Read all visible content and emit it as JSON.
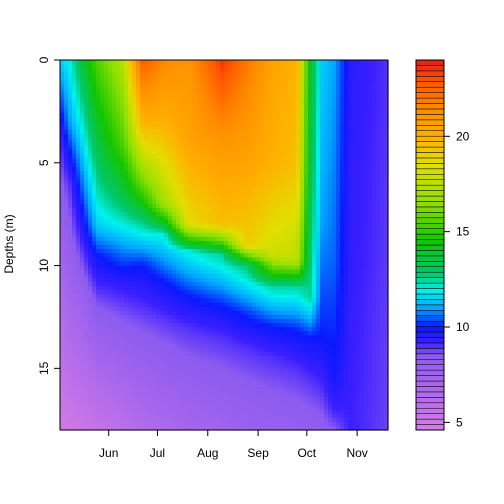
{
  "chart_data": {
    "type": "heatmap",
    "title": "",
    "xlabel": "",
    "ylabel": "Depths (m)",
    "x_tick_labels": [
      "Jun",
      "Jul",
      "Aug",
      "Sep",
      "Oct",
      "Nov"
    ],
    "x_tick_dates": [
      "2015-06-01",
      "2015-07-01",
      "2015-08-01",
      "2015-09-01",
      "2015-10-01",
      "2015-11-01"
    ],
    "xlim": [
      "2015-05-02",
      "2015-11-20"
    ],
    "y_ticks": [
      0,
      5,
      10,
      15
    ],
    "ylim": [
      18,
      0
    ],
    "y_reversed": true,
    "value_range": [
      4.6,
      24
    ],
    "colorbar": {
      "ticks": [
        5,
        10,
        15,
        20
      ],
      "colors": [
        "#d67be6",
        "#8c5bf0",
        "#3b1fff",
        "#0a18ff",
        "#00a7ff",
        "#00f2ee",
        "#00c86e",
        "#13c400",
        "#8ee000",
        "#e2df00",
        "#ffb000",
        "#ff8a00",
        "#ff5a00",
        "#e51d17"
      ],
      "color_values": [
        4.6,
        8.5,
        9.2,
        10.0,
        11.0,
        11.9,
        12.8,
        14.5,
        16.5,
        18.5,
        20.0,
        21.5,
        22.8,
        24.0
      ]
    },
    "profiles": [
      {
        "date": "2015-05-02",
        "depths": [
          0,
          4,
          8,
          12,
          18
        ],
        "values": [
          11.5,
          9.0,
          7.8,
          6.5,
          4.8
        ]
      },
      {
        "date": "2015-05-08",
        "depths": [
          0,
          3,
          6,
          10,
          18
        ],
        "values": [
          12.0,
          11.0,
          9.0,
          7.8,
          5.0
        ]
      },
      {
        "date": "2015-05-15",
        "depths": [
          0,
          3,
          6,
          9,
          12,
          18
        ],
        "values": [
          13.5,
          12.0,
          10.5,
          9.0,
          7.5,
          5.2
        ]
      },
      {
        "date": "2015-05-25",
        "depths": [
          0,
          4,
          8,
          9.5,
          12,
          18
        ],
        "values": [
          15.5,
          13.5,
          11.5,
          10.0,
          8.5,
          5.5
        ]
      },
      {
        "date": "2015-06-10",
        "depths": [
          0,
          4,
          7,
          9,
          11,
          18
        ],
        "values": [
          17.5,
          15.5,
          13.0,
          11.0,
          9.3,
          6.0
        ]
      },
      {
        "date": "2015-06-22",
        "depths": [
          0,
          3,
          6,
          8,
          10,
          12,
          18
        ],
        "values": [
          22.8,
          20.0,
          16.0,
          12.5,
          10.0,
          9.0,
          6.5
        ]
      },
      {
        "date": "2015-07-05",
        "depths": [
          0,
          3,
          7,
          8.5,
          11,
          12.5,
          18
        ],
        "values": [
          21.5,
          20.0,
          17.0,
          12.0,
          9.8,
          9.0,
          6.8
        ]
      },
      {
        "date": "2015-07-20",
        "depths": [
          0,
          4,
          8,
          9.3,
          11.5,
          13,
          18
        ],
        "values": [
          21.0,
          20.5,
          18.5,
          12.0,
          10.0,
          9.0,
          7.2
        ]
      },
      {
        "date": "2015-08-10",
        "depths": [
          0,
          4,
          8,
          9.5,
          12,
          13.5,
          18
        ],
        "values": [
          23.5,
          21.0,
          19.5,
          12.5,
          10.0,
          9.0,
          7.5
        ]
      },
      {
        "date": "2015-08-25",
        "depths": [
          0,
          5,
          9,
          10,
          12.3,
          14,
          18
        ],
        "values": [
          22.0,
          20.5,
          19.0,
          12.8,
          10.2,
          9.0,
          7.7
        ]
      },
      {
        "date": "2015-09-10",
        "depths": [
          0,
          5,
          9.5,
          11,
          13,
          14.5,
          18
        ],
        "values": [
          20.5,
          20.0,
          18.0,
          12.5,
          10.0,
          9.0,
          7.9
        ]
      },
      {
        "date": "2015-09-25",
        "depths": [
          0,
          5,
          9.8,
          11,
          13.2,
          15,
          18
        ],
        "values": [
          20.0,
          19.5,
          17.5,
          12.5,
          10.0,
          9.0,
          8.0
        ]
      },
      {
        "date": "2015-10-03",
        "depths": [
          0,
          6,
          11.5,
          13.5,
          15.5,
          18
        ],
        "values": [
          14.0,
          13.5,
          12.5,
          10.0,
          9.0,
          8.1
        ]
      },
      {
        "date": "2015-10-10",
        "depths": [
          0,
          8,
          13.5,
          15.5,
          18
        ],
        "values": [
          11.5,
          11.0,
          10.0,
          9.2,
          8.2
        ]
      },
      {
        "date": "2015-10-18",
        "depths": [
          0,
          10,
          15.5,
          17,
          18
        ],
        "values": [
          11.0,
          10.5,
          9.8,
          9.2,
          8.5
        ]
      },
      {
        "date": "2015-10-28",
        "depths": [
          0,
          18
        ],
        "values": [
          9.5,
          9.2
        ]
      },
      {
        "date": "2015-11-20",
        "depths": [
          0,
          18
        ],
        "values": [
          9.0,
          8.8
        ]
      }
    ]
  }
}
